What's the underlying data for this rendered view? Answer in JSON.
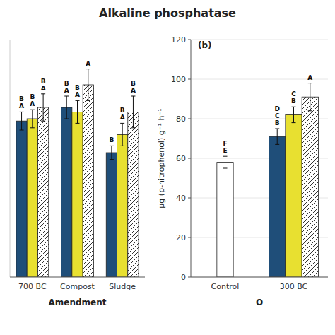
{
  "title": "Alkaline phosphatase",
  "chart_data": [
    {
      "type": "bar",
      "categories": [
        "700 BC",
        "Compost",
        "Sludge"
      ],
      "xlabel": "Amendment",
      "ylim": [
        0,
        105
      ],
      "tick_labels": "x",
      "series": [
        {
          "color": "#1f4e79",
          "values": [
            69,
            75,
            55
          ],
          "errors": [
            4,
            5,
            3
          ],
          "letters": [
            [
              "A",
              "B"
            ],
            [
              "A",
              "B"
            ],
            [
              "B"
            ]
          ]
        },
        {
          "color": "#e8e030",
          "values": [
            70,
            73,
            63
          ],
          "errors": [
            4,
            5,
            5
          ],
          "letters": [
            [
              "A",
              "B"
            ],
            [
              "A",
              "B"
            ],
            [
              "A",
              "B"
            ]
          ]
        },
        {
          "color": "white",
          "values": [
            75,
            85,
            73
          ],
          "errors": [
            6,
            7,
            7
          ],
          "letters": [
            [
              "A",
              "B"
            ],
            [
              "A"
            ],
            [
              "A",
              "B"
            ]
          ]
        }
      ]
    },
    {
      "type": "bar",
      "categories": [
        "Control",
        "300 BC"
      ],
      "xlabel": "O",
      "ylabel": "μg (p-nitrophenol) g⁻¹ h⁻¹",
      "ylim": [
        0,
        120
      ],
      "yticks": [
        0,
        20,
        40,
        60,
        80,
        100,
        120
      ],
      "annotations": [
        "(b)"
      ],
      "series": [
        {
          "color": "white",
          "values": [
            58,
            null
          ],
          "errors": [
            3,
            null
          ],
          "letters": [
            [
              "E",
              "F"
            ],
            null
          ]
        },
        {
          "color": "#1f4e79",
          "values": [
            null,
            71
          ],
          "errors": [
            null,
            4
          ],
          "letters": [
            null,
            [
              "B",
              "C",
              "D"
            ]
          ]
        },
        {
          "color": "#e8e030",
          "values": [
            null,
            82
          ],
          "errors": [
            null,
            4
          ],
          "letters": [
            null,
            [
              "B",
              "C"
            ]
          ]
        },
        {
          "color": "white",
          "values": [
            null,
            91
          ],
          "errors": [
            null,
            7
          ],
          "letters": [
            null,
            [
              "A"
            ]
          ]
        }
      ]
    }
  ]
}
